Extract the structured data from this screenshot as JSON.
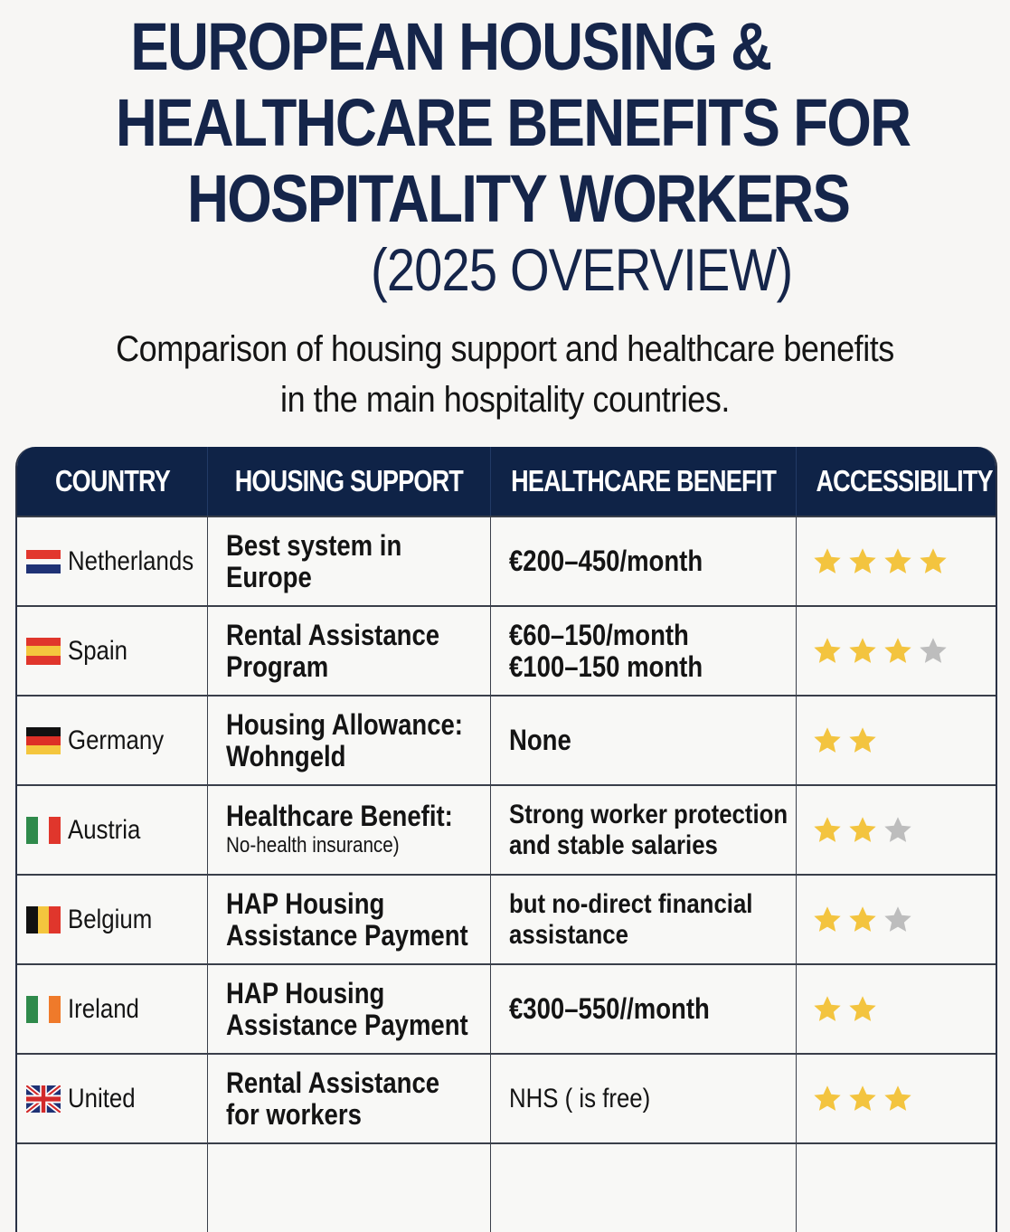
{
  "header": {
    "title_lines": [
      "EUROPEAN HOUSING &",
      "HEALTHCARE BENEFITS FOR",
      "HOSPITALITY WORKERS"
    ],
    "year_label": "(2025 OVERVIEW)",
    "intro_lines": [
      "Comparison of housing support and healthcare benefits",
      "in the main hospitality countries."
    ]
  },
  "colors": {
    "title": "#15254a",
    "table_header_bg": "#0f2347",
    "star_filled": "#f3c43f",
    "star_empty": "#bdbdbd"
  },
  "table": {
    "columns": [
      "COUNTRY",
      "HOUSING SUPPORT",
      "HEALTHCARE BENEFIT",
      "ACCESSIBILITY"
    ],
    "rows": [
      {
        "country": "Netherlands",
        "flag": "netherlands-flag-icon",
        "housing": [
          "Best system in",
          "Europe"
        ],
        "healthcare": [
          "€200–450/month"
        ],
        "stars_filled": 4,
        "stars_empty": 0
      },
      {
        "country": "Spain",
        "flag": "spain-flag-icon",
        "housing": [
          "Rental Assistance",
          "Program"
        ],
        "healthcare": [
          "€60–150/month",
          "€100–150 month"
        ],
        "stars_filled": 3,
        "stars_empty": 1
      },
      {
        "country": "Germany",
        "flag": "germany-flag-icon",
        "housing": [
          "Housing Allowance:",
          "Wohngeld"
        ],
        "healthcare": [
          "None"
        ],
        "stars_filled": 2,
        "stars_empty": 0
      },
      {
        "country": "Austria",
        "flag": "italy-style-flag-icon",
        "housing": [
          "Healthcare Benefit:",
          "No-health insurance)"
        ],
        "healthcare": [
          "Strong worker protection",
          "and stable salaries"
        ],
        "stars_filled": 2,
        "stars_empty": 1
      },
      {
        "country": "Belgium",
        "flag": "belgium-flag-icon",
        "housing": [
          "HAP Housing",
          "Assistance Payment"
        ],
        "healthcare": [
          "but no-direct financial",
          "assistance"
        ],
        "stars_filled": 2,
        "stars_empty": 1
      },
      {
        "country": "Ireland",
        "flag": "ireland-flag-icon",
        "housing": [
          "HAP Housing",
          "Assistance Payment"
        ],
        "healthcare": [
          "€300–550//month"
        ],
        "stars_filled": 2,
        "stars_empty": 0
      },
      {
        "country": "United",
        "flag": "uk-flag-icon",
        "housing": [
          "Rental Assistance",
          "for workers"
        ],
        "healthcare": [
          "NHS ( is free)"
        ],
        "stars_filled": 3,
        "stars_empty": 0
      }
    ]
  }
}
